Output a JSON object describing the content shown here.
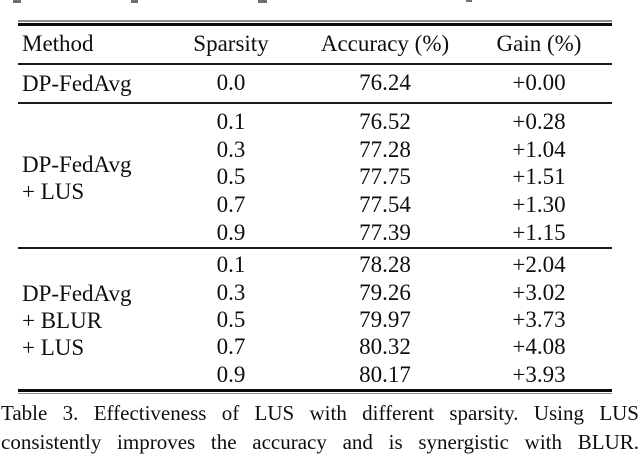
{
  "table": {
    "headers": [
      "Method",
      "Sparsity",
      "Accuracy (%)",
      "Gain (%)"
    ],
    "blocks": [
      {
        "method_lines": [
          "DP-FedAvg"
        ],
        "rows": [
          {
            "sparsity": "0.0",
            "accuracy": "76.24",
            "gain": "+0.00"
          }
        ]
      },
      {
        "method_lines": [
          "DP-FedAvg",
          "+ LUS"
        ],
        "rows": [
          {
            "sparsity": "0.1",
            "accuracy": "76.52",
            "gain": "+0.28"
          },
          {
            "sparsity": "0.3",
            "accuracy": "77.28",
            "gain": "+1.04"
          },
          {
            "sparsity": "0.5",
            "accuracy": "77.75",
            "gain": "+1.51"
          },
          {
            "sparsity": "0.7",
            "accuracy": "77.54",
            "gain": "+1.30"
          },
          {
            "sparsity": "0.9",
            "accuracy": "77.39",
            "gain": "+1.15"
          }
        ]
      },
      {
        "method_lines": [
          "DP-FedAvg",
          "+ BLUR",
          "+ LUS"
        ],
        "rows": [
          {
            "sparsity": "0.1",
            "accuracy": "78.28",
            "gain": "+2.04"
          },
          {
            "sparsity": "0.3",
            "accuracy": "79.26",
            "gain": "+3.02"
          },
          {
            "sparsity": "0.5",
            "accuracy": "79.97",
            "gain": "+3.73"
          },
          {
            "sparsity": "0.7",
            "accuracy": "80.32",
            "gain": "+4.08"
          },
          {
            "sparsity": "0.9",
            "accuracy": "80.17",
            "gain": "+3.93"
          }
        ]
      }
    ]
  },
  "caption": {
    "line1": "Table 3. Effectiveness of LUS with different sparsity. Using LUS",
    "line2": "consistently improves the accuracy and is synergistic with BLUR."
  }
}
